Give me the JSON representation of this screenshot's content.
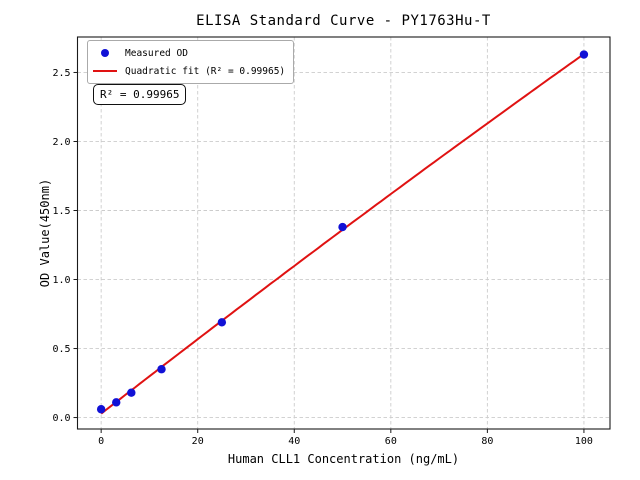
{
  "chart_data": {
    "type": "scatter",
    "title": "ELISA Standard Curve - PY1763Hu-T",
    "xlabel": "Human CLL1 Concentration (ng/mL)",
    "ylabel": "OD Value(450nm)",
    "xlim": [
      -4.9,
      105.4
    ],
    "ylim": [
      -0.083,
      2.757
    ],
    "x_ticks": [
      0,
      20,
      40,
      60,
      80,
      100
    ],
    "x_tick_labels": [
      "0",
      "20",
      "40",
      "60",
      "80",
      "100"
    ],
    "y_ticks": [
      0,
      0.5,
      1.0,
      1.5,
      2.0,
      2.5
    ],
    "y_tick_labels": [
      "0.0",
      "0.5",
      "1.0",
      "1.5",
      "2.0",
      "2.5"
    ],
    "grid": {
      "visible": true,
      "style": "dashed",
      "color": "#cccccc"
    },
    "legend_position": "upper-left",
    "annotation": "R² = 0.99965",
    "r_squared": 0.99965,
    "axis_color": "#1a1a1a",
    "series": [
      {
        "name": "Measured OD",
        "type": "scatter",
        "marker": "circle",
        "color": "#1111d6",
        "x": [
          0,
          3.125,
          6.25,
          12.5,
          25,
          50,
          100
        ],
        "y": [
          0.06,
          0.11,
          0.18,
          0.35,
          0.69,
          1.38,
          2.63
        ]
      },
      {
        "name": "Quadratic fit (R² = 0.99965)",
        "type": "line",
        "fit": "quadratic",
        "color": "#e01212",
        "x_range": [
          0,
          100
        ]
      }
    ]
  }
}
